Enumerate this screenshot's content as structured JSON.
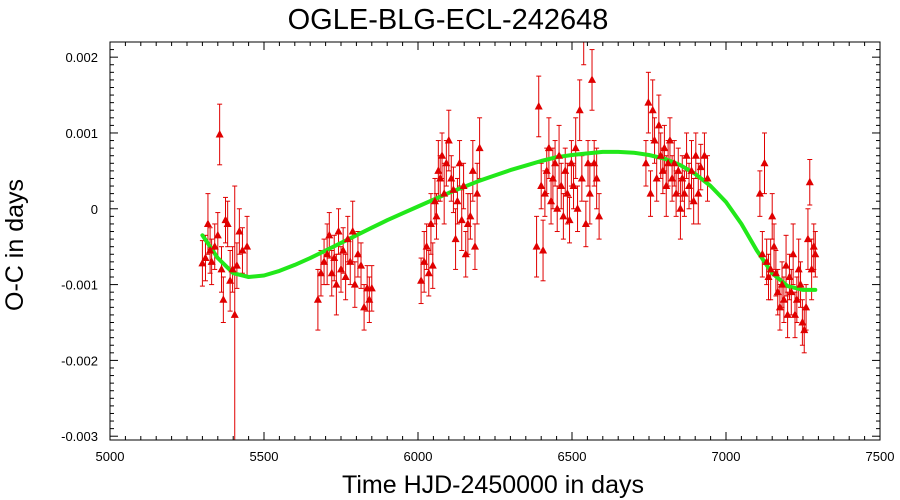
{
  "chart_data": {
    "type": "scatter",
    "title": "OGLE-BLG-ECL-242648",
    "xlabel": "Time HJD-2450000 in days",
    "ylabel": "O-C in days",
    "xlim": [
      5000,
      7500
    ],
    "ylim": [
      -0.00305,
      0.0022
    ],
    "x_ticks": [
      5000,
      5500,
      6000,
      6500,
      7000,
      7500
    ],
    "x_tick_labels": [
      "5000",
      "5500",
      "6000",
      "6500",
      "7000",
      "7500"
    ],
    "y_ticks": [
      -0.003,
      -0.002,
      -0.001,
      0,
      0.001,
      0.002
    ],
    "y_tick_labels": [
      "-0.003",
      "-0.002",
      "-0.001",
      "0",
      "0.001",
      "0.002"
    ],
    "grid": false,
    "colors": {
      "points": "#e00000",
      "fit": "#22e81a",
      "frame": "#000000"
    },
    "series": [
      {
        "kind": "points_with_errorbars",
        "marker": "triangle",
        "points": [
          [
            5300,
            -0.00072,
            0.0003
          ],
          [
            5310,
            -0.00065,
            0.0003
          ],
          [
            5318,
            -0.0002,
            0.0004
          ],
          [
            5325,
            -0.00055,
            0.0003
          ],
          [
            5330,
            -0.0007,
            0.0003
          ],
          [
            5340,
            -0.0005,
            0.0003
          ],
          [
            5350,
            -0.00035,
            0.0003
          ],
          [
            5356,
            0.00098,
            0.0004
          ],
          [
            5362,
            -0.0008,
            0.0003
          ],
          [
            5368,
            -0.0012,
            0.0003
          ],
          [
            5375,
            -0.00015,
            0.0003
          ],
          [
            5382,
            -0.0002,
            0.0003
          ],
          [
            5390,
            -0.00095,
            0.0004
          ],
          [
            5398,
            -0.0008,
            0.0003
          ],
          [
            5405,
            -0.0014,
            0.0017
          ],
          [
            5412,
            -0.00075,
            0.0003
          ],
          [
            5420,
            -0.0003,
            0.0003
          ],
          [
            5430,
            -0.00055,
            0.0003
          ],
          [
            5445,
            -0.0005,
            0.0004
          ],
          [
            5675,
            -0.0012,
            0.0004
          ],
          [
            5685,
            -0.00085,
            0.0003
          ],
          [
            5695,
            -0.0007,
            0.0003
          ],
          [
            5705,
            -0.0006,
            0.0004
          ],
          [
            5712,
            -0.00035,
            0.0003
          ],
          [
            5720,
            -0.00085,
            0.0003
          ],
          [
            5728,
            -0.00065,
            0.0003
          ],
          [
            5735,
            -0.001,
            0.0004
          ],
          [
            5742,
            -0.0003,
            0.0003
          ],
          [
            5750,
            -0.0008,
            0.0003
          ],
          [
            5757,
            -0.00055,
            0.0003
          ],
          [
            5765,
            -0.0009,
            0.0003
          ],
          [
            5772,
            -0.0004,
            0.0003
          ],
          [
            5780,
            -0.0007,
            0.0003
          ],
          [
            5788,
            -0.0003,
            0.0004
          ],
          [
            5795,
            -0.001,
            0.0003
          ],
          [
            5805,
            -0.0006,
            0.0003
          ],
          [
            5815,
            -0.00075,
            0.0003
          ],
          [
            5825,
            -0.0013,
            0.0003
          ],
          [
            5835,
            -0.00105,
            0.0003
          ],
          [
            5842,
            -0.0012,
            0.0003
          ],
          [
            5850,
            -0.00105,
            0.0003
          ],
          [
            6010,
            -0.00095,
            0.0003
          ],
          [
            6020,
            -0.0007,
            0.0004
          ],
          [
            6028,
            -0.0005,
            0.0003
          ],
          [
            6035,
            -0.00085,
            0.0003
          ],
          [
            6042,
            -0.0002,
            0.0004
          ],
          [
            6048,
            -0.00075,
            0.0003
          ],
          [
            6055,
            0.0001,
            0.0003
          ],
          [
            6060,
            -0.0001,
            0.0003
          ],
          [
            6066,
            0.0005,
            0.0004
          ],
          [
            6072,
            0.0004,
            0.0003
          ],
          [
            6078,
            0.0007,
            0.0003
          ],
          [
            6085,
            0.0002,
            0.0004
          ],
          [
            6092,
            0.0006,
            0.0003
          ],
          [
            6100,
            0.0009,
            0.0004
          ],
          [
            6108,
            0.0004,
            0.0003
          ],
          [
            6115,
            0.00025,
            0.0003
          ],
          [
            6122,
            -0.0004,
            0.0004
          ],
          [
            6128,
            0.0001,
            0.0003
          ],
          [
            6135,
            0.0006,
            0.0003
          ],
          [
            6142,
            -0.00015,
            0.0004
          ],
          [
            6148,
            0.0003,
            0.0003
          ],
          [
            6155,
            -0.0006,
            0.0003
          ],
          [
            6162,
            -0.0002,
            0.0004
          ],
          [
            6170,
            -0.0001,
            0.0003
          ],
          [
            6178,
            0.0005,
            0.0004
          ],
          [
            6185,
            -0.0005,
            0.0003
          ],
          [
            6192,
            0.0002,
            0.0004
          ],
          [
            6200,
            0.0008,
            0.0004
          ],
          [
            6385,
            -0.0005,
            0.0004
          ],
          [
            6392,
            0.00135,
            0.0004
          ],
          [
            6400,
            0.0003,
            0.0003
          ],
          [
            6406,
            -0.00055,
            0.0004
          ],
          [
            6412,
            0.0002,
            0.0003
          ],
          [
            6418,
            0.0005,
            0.0003
          ],
          [
            6425,
            0.0008,
            0.0004
          ],
          [
            6432,
            0.0001,
            0.0003
          ],
          [
            6438,
            0.0004,
            0.0004
          ],
          [
            6445,
            0.0006,
            0.0003
          ],
          [
            6452,
            0.0,
            0.0003
          ],
          [
            6458,
            0.0007,
            0.0004
          ],
          [
            6465,
            0.0003,
            0.0003
          ],
          [
            6472,
            -0.0001,
            0.0003
          ],
          [
            6478,
            0.0005,
            0.0003
          ],
          [
            6485,
            0.0002,
            0.0004
          ],
          [
            6492,
            -0.00015,
            0.0003
          ],
          [
            6498,
            0.0006,
            0.0003
          ],
          [
            6505,
            0.0003,
            0.0003
          ],
          [
            6512,
            0.0008,
            0.0004
          ],
          [
            6518,
            0.0,
            0.0003
          ],
          [
            6525,
            0.0013,
            0.0004
          ],
          [
            6532,
            0.0004,
            0.0003
          ],
          [
            6538,
            0.0023,
            0.0004
          ],
          [
            6545,
            -0.0002,
            0.0003
          ],
          [
            6552,
            0.0006,
            0.0003
          ],
          [
            6558,
            0.0002,
            0.0004
          ],
          [
            6565,
            0.0017,
            0.0004
          ],
          [
            6572,
            0.0006,
            0.0003
          ],
          [
            6580,
            0.0004,
            0.0004
          ],
          [
            6588,
            -0.0001,
            0.0003
          ],
          [
            6740,
            0.0006,
            0.0003
          ],
          [
            6748,
            0.0014,
            0.0004
          ],
          [
            6755,
            0.0002,
            0.0003
          ],
          [
            6762,
            0.0013,
            0.0004
          ],
          [
            6768,
            0.0009,
            0.0003
          ],
          [
            6775,
            0.0004,
            0.0003
          ],
          [
            6782,
            0.0011,
            0.0004
          ],
          [
            6788,
            0.0007,
            0.0003
          ],
          [
            6795,
            0.0005,
            0.0003
          ],
          [
            6800,
            0.0008,
            0.0003
          ],
          [
            6806,
            0.0003,
            0.0004
          ],
          [
            6812,
            0.0006,
            0.0003
          ],
          [
            6818,
            0.0009,
            0.0003
          ],
          [
            6825,
            0.0004,
            0.0003
          ],
          [
            6832,
            0.0006,
            0.0003
          ],
          [
            6838,
            0.0002,
            0.0003
          ],
          [
            6845,
            0.0005,
            0.0003
          ],
          [
            6852,
            0.0,
            0.0004
          ],
          [
            6858,
            0.0004,
            0.0003
          ],
          [
            6865,
            0.0002,
            0.0003
          ],
          [
            6872,
            0.0007,
            0.0003
          ],
          [
            6880,
            0.0003,
            0.0003
          ],
          [
            6888,
            0.0005,
            0.0004
          ],
          [
            6895,
            0.0001,
            0.0003
          ],
          [
            6902,
            0.0007,
            0.0003
          ],
          [
            6910,
            0.0002,
            0.0004
          ],
          [
            6918,
            0.00055,
            0.0003
          ],
          [
            6930,
            0.0007,
            0.0003
          ],
          [
            6940,
            0.0004,
            0.0003
          ],
          [
            7110,
            0.0002,
            0.0003
          ],
          [
            7118,
            -0.0006,
            0.0003
          ],
          [
            7125,
            0.0006,
            0.0004
          ],
          [
            7132,
            -0.0007,
            0.0003
          ],
          [
            7138,
            -0.0009,
            0.0003
          ],
          [
            7145,
            -0.0008,
            0.0004
          ],
          [
            7150,
            -0.0001,
            0.0003
          ],
          [
            7156,
            -0.0005,
            0.0003
          ],
          [
            7162,
            -0.00085,
            0.0003
          ],
          [
            7168,
            -0.0011,
            0.0003
          ],
          [
            7175,
            -0.0013,
            0.0003
          ],
          [
            7182,
            -0.001,
            0.0003
          ],
          [
            7188,
            -0.0012,
            0.0003
          ],
          [
            7195,
            -0.00075,
            0.0004
          ],
          [
            7200,
            -0.0014,
            0.0003
          ],
          [
            7206,
            -0.0009,
            0.0003
          ],
          [
            7212,
            -0.0011,
            0.0003
          ],
          [
            7218,
            -0.0006,
            0.0004
          ],
          [
            7224,
            -0.0014,
            0.0003
          ],
          [
            7230,
            -0.0012,
            0.0003
          ],
          [
            7236,
            -0.0008,
            0.0004
          ],
          [
            7242,
            -0.001,
            0.0003
          ],
          [
            7248,
            -0.0015,
            0.0003
          ],
          [
            7254,
            -0.0016,
            0.0003
          ],
          [
            7260,
            -0.0013,
            0.0003
          ],
          [
            7266,
            -0.0004,
            0.0004
          ],
          [
            7272,
            0.00035,
            0.0003
          ],
          [
            7278,
            -0.0008,
            0.0004
          ],
          [
            7285,
            -0.0005,
            0.0003
          ],
          [
            7290,
            -0.0006,
            0.0003
          ]
        ]
      },
      {
        "kind": "fit_curve",
        "x": [
          5300,
          5350,
          5400,
          5450,
          5500,
          5550,
          5600,
          5650,
          5700,
          5750,
          5800,
          5850,
          5900,
          5950,
          6000,
          6050,
          6100,
          6150,
          6200,
          6250,
          6300,
          6350,
          6400,
          6450,
          6500,
          6550,
          6600,
          6650,
          6700,
          6750,
          6800,
          6850,
          6900,
          6950,
          7000,
          7050,
          7100,
          7150,
          7200,
          7250,
          7290
        ],
        "y": [
          -0.00035,
          -0.00065,
          -0.00085,
          -0.0009,
          -0.00088,
          -0.00082,
          -0.00074,
          -0.00065,
          -0.00055,
          -0.00045,
          -0.00035,
          -0.00025,
          -0.00015,
          -6e-05,
          3e-05,
          0.00012,
          0.00021,
          0.00029,
          0.00037,
          0.00044,
          0.00051,
          0.00057,
          0.00063,
          0.00068,
          0.00071,
          0.00073,
          0.00075,
          0.00075,
          0.00074,
          0.00071,
          0.00066,
          0.00058,
          0.00046,
          0.0003,
          9e-05,
          -0.0002,
          -0.00055,
          -0.00085,
          -0.00102,
          -0.00107,
          -0.00107
        ]
      }
    ]
  }
}
